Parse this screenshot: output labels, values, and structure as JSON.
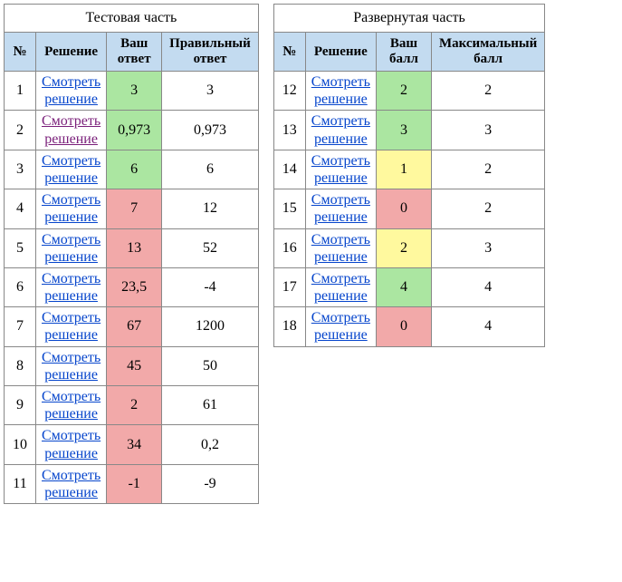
{
  "left": {
    "title": "Тестовая часть",
    "headers": [
      "№",
      "Решение",
      "Ваш ответ",
      "Правильный ответ"
    ],
    "link_text": "Смотреть решение",
    "rows": [
      {
        "n": "1",
        "ans": "3",
        "correct": "3",
        "status": "green",
        "visited": false
      },
      {
        "n": "2",
        "ans": "0,973",
        "correct": "0,973",
        "status": "green",
        "visited": true
      },
      {
        "n": "3",
        "ans": "6",
        "correct": "6",
        "status": "green",
        "visited": false
      },
      {
        "n": "4",
        "ans": "7",
        "correct": "12",
        "status": "red",
        "visited": false
      },
      {
        "n": "5",
        "ans": "13",
        "correct": "52",
        "status": "red",
        "visited": false
      },
      {
        "n": "6",
        "ans": "23,5",
        "correct": "-4",
        "status": "red",
        "visited": false
      },
      {
        "n": "7",
        "ans": "67",
        "correct": "1200",
        "status": "red",
        "visited": false
      },
      {
        "n": "8",
        "ans": "45",
        "correct": "50",
        "status": "red",
        "visited": false
      },
      {
        "n": "9",
        "ans": "2",
        "correct": "61",
        "status": "red",
        "visited": false
      },
      {
        "n": "10",
        "ans": "34",
        "correct": "0,2",
        "status": "red",
        "visited": false
      },
      {
        "n": "11",
        "ans": "-1",
        "correct": "-9",
        "status": "red",
        "visited": false
      }
    ]
  },
  "right": {
    "title": "Развернутая часть",
    "headers": [
      "№",
      "Решение",
      "Ваш балл",
      "Максимальный балл"
    ],
    "link_text": "Смотреть решение",
    "rows": [
      {
        "n": "12",
        "ans": "2",
        "correct": "2",
        "status": "green"
      },
      {
        "n": "13",
        "ans": "3",
        "correct": "3",
        "status": "green"
      },
      {
        "n": "14",
        "ans": "1",
        "correct": "2",
        "status": "yellow"
      },
      {
        "n": "15",
        "ans": "0",
        "correct": "2",
        "status": "red"
      },
      {
        "n": "16",
        "ans": "2",
        "correct": "3",
        "status": "yellow"
      },
      {
        "n": "17",
        "ans": "4",
        "correct": "4",
        "status": "green"
      },
      {
        "n": "18",
        "ans": "0",
        "correct": "4",
        "status": "red"
      }
    ]
  },
  "colors": {
    "header_bg": "#c3dbf0",
    "green": "#abe6a1",
    "yellow": "#fff99e",
    "red": "#f2a9a9",
    "link": "#0645cc",
    "link_visited": "#7a1f7a",
    "border": "#888888"
  }
}
